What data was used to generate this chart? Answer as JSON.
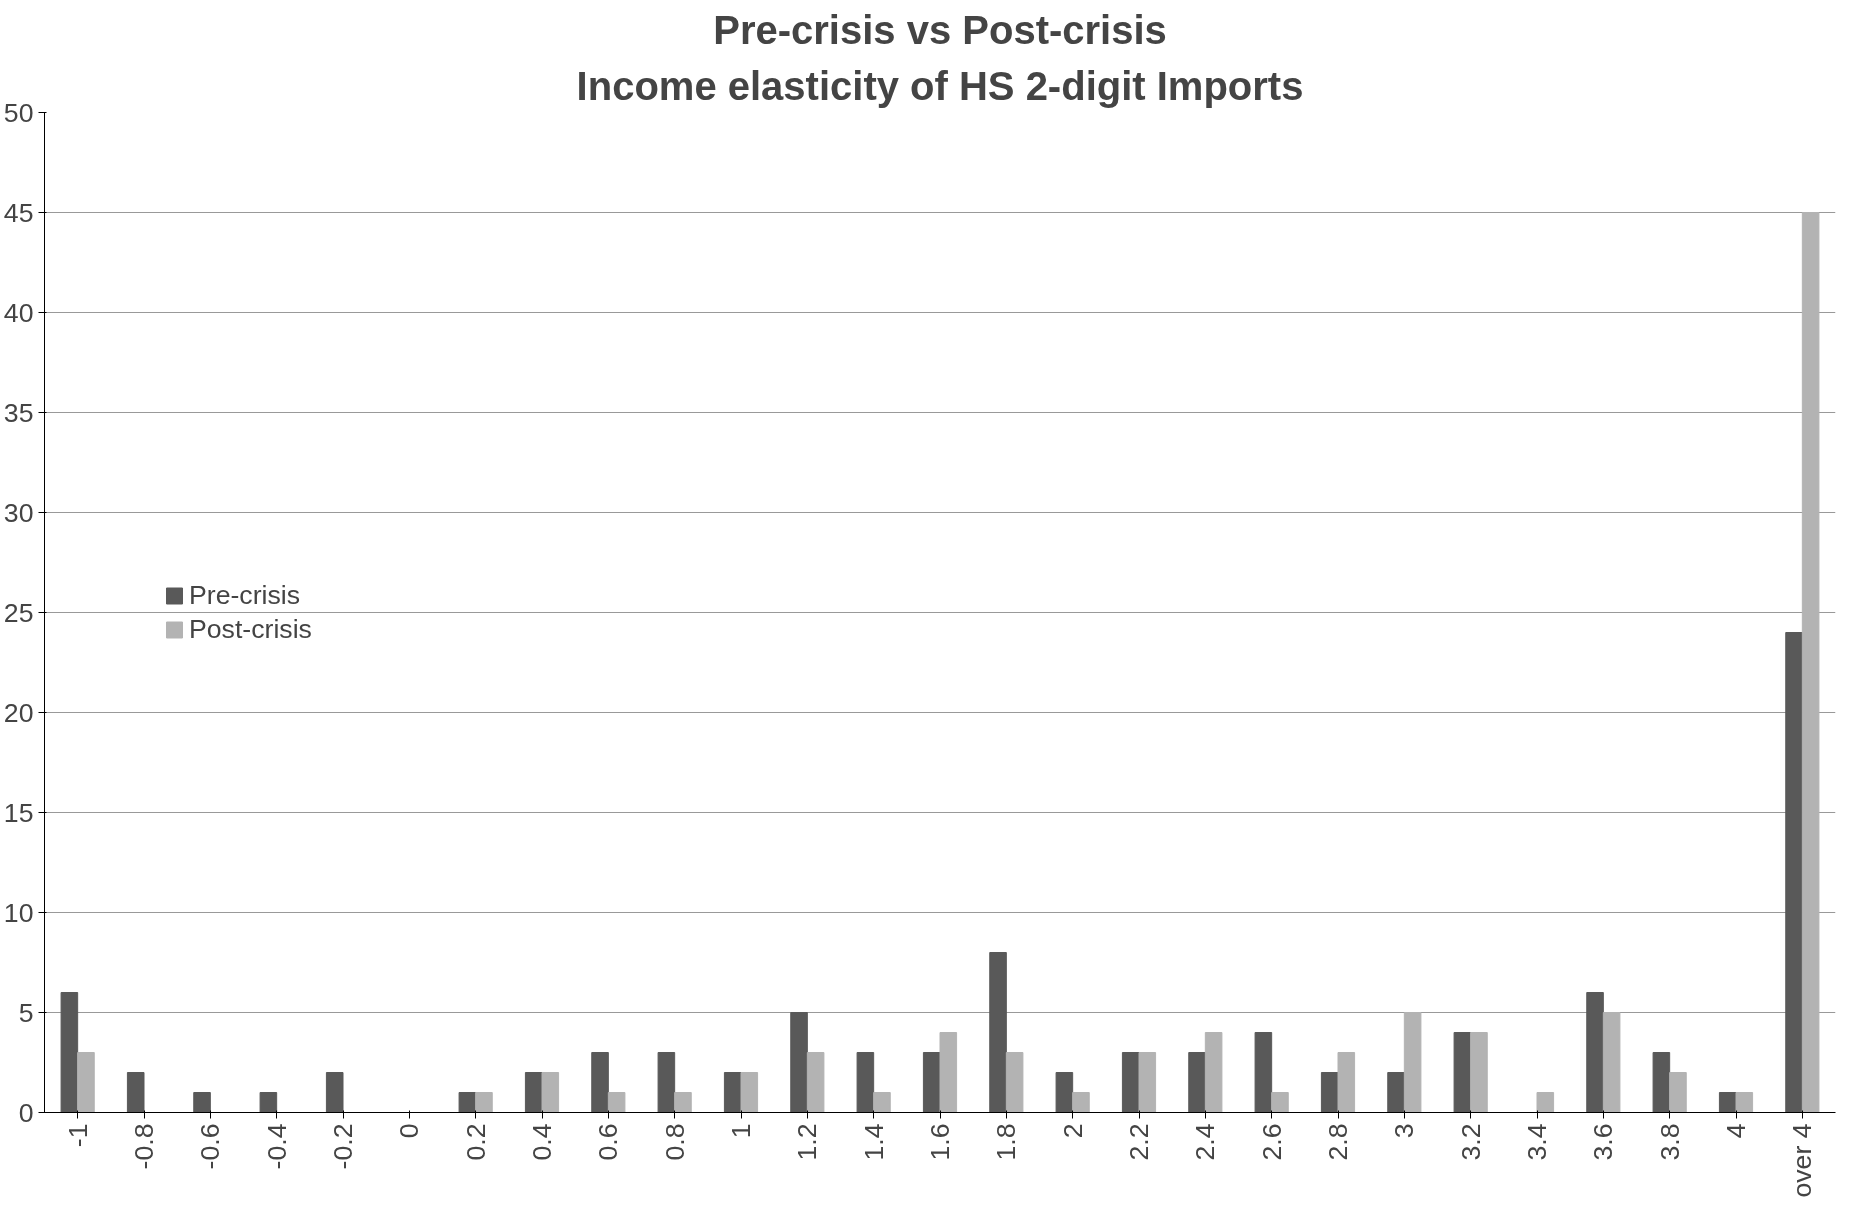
{
  "chart_data": {
    "type": "bar",
    "title": "Pre-crisis vs Post-crisis",
    "subtitle": "Income elasticity of HS 2-digit Imports",
    "categories": [
      "-1",
      "-0.8",
      "-0.6",
      "-0.4",
      "-0.2",
      "0",
      "0.2",
      "0.4",
      "0.6",
      "0.8",
      "1",
      "1.2",
      "1.4",
      "1.6",
      "1.8",
      "2",
      "2.2",
      "2.4",
      "2.6",
      "2.8",
      "3",
      "3.2",
      "3.4",
      "3.6",
      "3.8",
      "4",
      "over 4"
    ],
    "series": [
      {
        "name": "Pre-crisis",
        "color": "#595959",
        "values": [
          6,
          2,
          1,
          1,
          2,
          0,
          1,
          2,
          3,
          3,
          2,
          5,
          3,
          3,
          8,
          2,
          3,
          3,
          4,
          2,
          2,
          4,
          0,
          6,
          3,
          1,
          24
        ]
      },
      {
        "name": "Post-crisis",
        "color": "#b3b3b3",
        "values": [
          3,
          0,
          0,
          0,
          0,
          0,
          1,
          2,
          1,
          1,
          2,
          3,
          1,
          4,
          3,
          1,
          3,
          4,
          1,
          3,
          5,
          4,
          1,
          5,
          2,
          1,
          45
        ]
      }
    ],
    "ylim": [
      0,
      50
    ],
    "yticks": [
      0,
      5,
      10,
      15,
      20,
      25,
      30,
      35,
      40,
      45,
      50
    ],
    "grid": "y",
    "legend": "left"
  }
}
